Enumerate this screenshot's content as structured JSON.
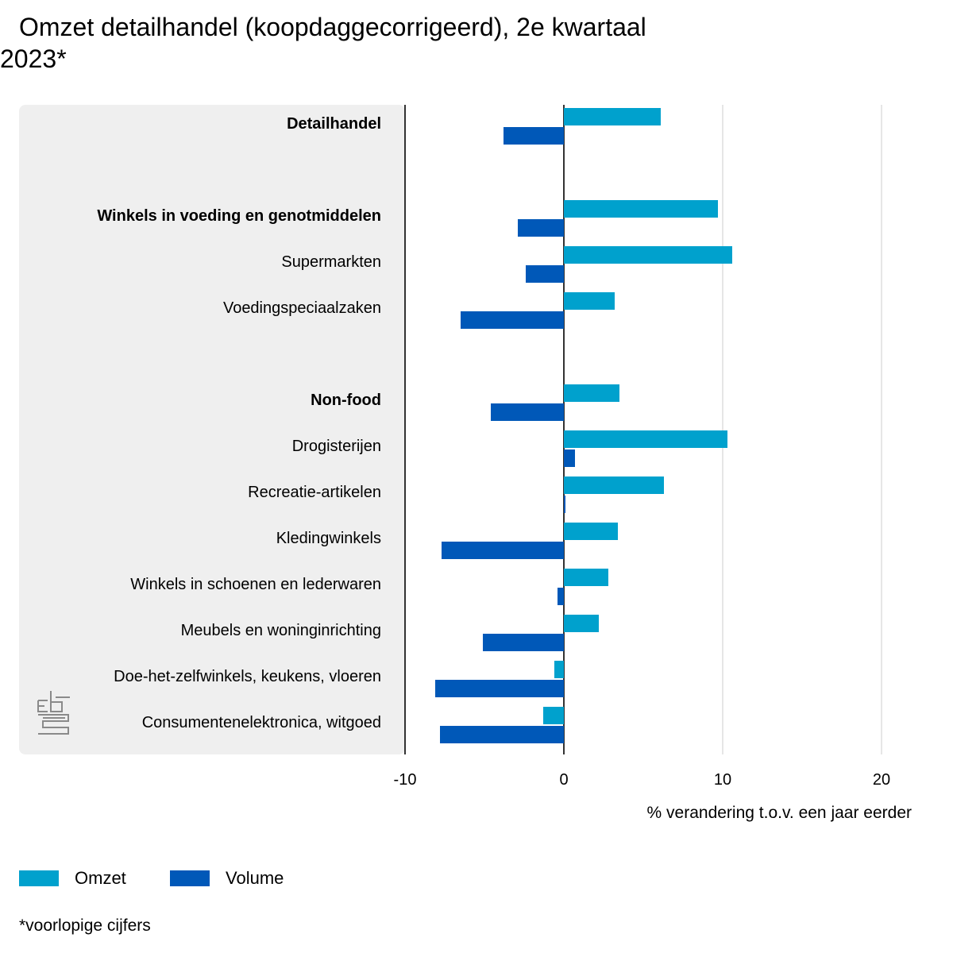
{
  "title": "Omzet detailhandel (koopdaggecorrigeerd), 2e kwartaal 2023*",
  "footnote": "*voorlopige cijfers",
  "logo": "cbs-logo-icon",
  "colors": {
    "omzet": "#00A1CD",
    "volume": "#0058B8",
    "panel": "#EFEFEF",
    "grid": "#CCCCCC",
    "axis": "#333333"
  },
  "legend": [
    {
      "label": "Omzet",
      "color": "#00A1CD"
    },
    {
      "label": "Volume",
      "color": "#0058B8"
    }
  ],
  "chart_data": {
    "type": "bar",
    "orientation": "horizontal",
    "title": "Omzet detailhandel (koopdaggecorrigeerd), 2e kwartaal 2023*",
    "xlabel": "% verandering t.o.v. een jaar eerder",
    "xlim": [
      -10,
      20
    ],
    "xticks": [
      -10,
      0,
      10,
      20
    ],
    "grid": true,
    "legend_position": "bottom-left",
    "categories": [
      {
        "label": "Detailhandel",
        "bold": true
      },
      {
        "label": "",
        "bold": false
      },
      {
        "label": "Winkels in voeding en genotmiddelen",
        "bold": true
      },
      {
        "label": "Supermarkten",
        "bold": false
      },
      {
        "label": "Voedingspeciaalzaken",
        "bold": false
      },
      {
        "label": "",
        "bold": false
      },
      {
        "label": "Non-food",
        "bold": true
      },
      {
        "label": "Drogisterijen",
        "bold": false
      },
      {
        "label": "Recreatie-artikelen",
        "bold": false
      },
      {
        "label": "Kledingwinkels",
        "bold": false
      },
      {
        "label": "Winkels in schoenen en lederwaren",
        "bold": false
      },
      {
        "label": "Meubels en woninginrichting",
        "bold": false
      },
      {
        "label": "Doe-het-zelfwinkels, keukens, vloeren",
        "bold": false
      },
      {
        "label": "Consumentenelektronica, witgoed",
        "bold": false
      }
    ],
    "series": [
      {
        "name": "Omzet",
        "color": "#00A1CD",
        "values": [
          6.1,
          null,
          9.7,
          10.6,
          3.2,
          null,
          3.5,
          10.3,
          6.3,
          3.4,
          2.8,
          2.2,
          -0.6,
          -1.3
        ]
      },
      {
        "name": "Volume",
        "color": "#0058B8",
        "values": [
          -3.8,
          null,
          -2.9,
          -2.4,
          -6.5,
          null,
          -4.6,
          0.7,
          0.1,
          -7.7,
          -0.4,
          -5.1,
          -8.1,
          -7.8
        ]
      }
    ]
  }
}
